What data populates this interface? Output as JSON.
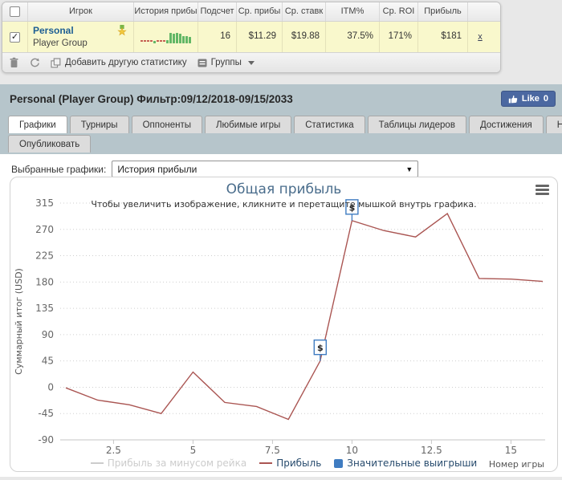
{
  "icons": {
    "check": "✓",
    "select_arrow": "▼"
  },
  "table": {
    "cols": {
      "player": "Игрок",
      "history": "История прибы",
      "count": "Подсчет",
      "avg_profit": "Ср. прибы",
      "avg_stake": "Ср. ставк",
      "itm": "ITM%",
      "avg_roi": "Ср. ROI",
      "profit": "Прибыль"
    },
    "row": {
      "checked": true,
      "name": "Personal",
      "subtitle": "Player Group",
      "count": "16",
      "avg_profit": "$11.29",
      "avg_stake": "$19.88",
      "itm": "37.5%",
      "avg_roi": "171%",
      "profit": "$181",
      "remove": "x",
      "sparkline": [
        -2,
        -2,
        -2,
        -2,
        3,
        -2,
        -2,
        -2,
        4,
        13,
        12,
        13,
        12,
        9,
        9,
        8
      ]
    },
    "toolbar": {
      "add_stat": "Добавить другую статистику",
      "groups": "Группы"
    }
  },
  "header": {
    "title": "Personal (Player Group) Фильтр:09/12/2018-09/15/2033",
    "like_label": "Like",
    "like_count": "0"
  },
  "tabs": {
    "active": "Графики",
    "row1": [
      "Графики",
      "Турниры",
      "Оппоненты",
      "Любимые игры",
      "Статистика",
      "Таблицы лидеров",
      "Достижения",
      "Найти"
    ],
    "row2": [
      "Опубликовать"
    ]
  },
  "chart_select": {
    "label": "Выбранные графики:",
    "value": "История прибыли"
  },
  "chart_data": {
    "type": "line",
    "title": "Общая прибыль",
    "subtitle": "Чтобы увеличить изображение, кликните и перетащите мышкой внутрь графика.",
    "xlabel": "Номер игры",
    "ylabel": "Суммарный итог (USD)",
    "x": [
      1,
      2,
      3,
      4,
      5,
      6,
      7,
      8,
      9,
      10,
      11,
      12,
      13,
      14,
      15,
      16
    ],
    "series": [
      {
        "name": "Прибыль за минусом рейка",
        "color": "#c0c0c0",
        "disabled": true
      },
      {
        "name": "Прибыль",
        "color": "#aa5552",
        "values": [
          -1,
          -22,
          -30,
          -45,
          26,
          -26,
          -33,
          -55,
          45,
          285,
          268,
          257,
          297,
          186,
          185,
          181
        ]
      },
      {
        "name": "Значительные выигрыши",
        "type": "flags",
        "color": "#3f7cc1",
        "symbol": "$",
        "points_x": [
          9,
          10
        ]
      }
    ],
    "ylim": [
      -90,
      315
    ],
    "yticks": [
      315,
      270,
      225,
      180,
      135,
      90,
      45,
      0,
      -45,
      -90
    ],
    "xticks": [
      2.5,
      5,
      7.5,
      10,
      12.5,
      15
    ],
    "grid": "dotted",
    "legend_position": "bottom"
  }
}
